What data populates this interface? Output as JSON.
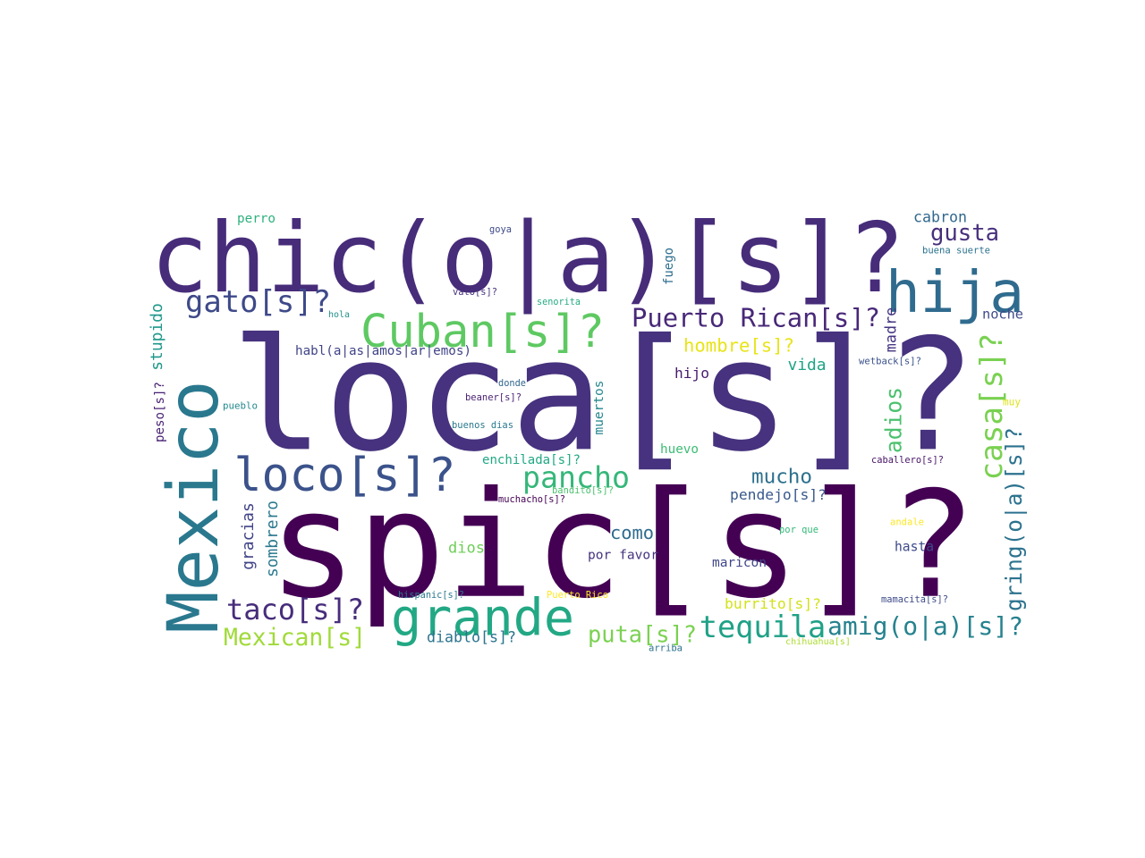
{
  "words": [
    {
      "text": "spic[s]?",
      "color": "#440154"
    },
    {
      "text": "loca[s]?",
      "color": "#46327e"
    },
    {
      "text": "chic(o|a)[s]?",
      "color": "#472c7a"
    },
    {
      "text": "Mexico",
      "color": "#2a788e"
    },
    {
      "text": "hija",
      "color": "#2f6b8e"
    },
    {
      "text": "grande",
      "color": "#22a884"
    },
    {
      "text": "Cuban[s]?",
      "color": "#5ec962"
    },
    {
      "text": "loco[s]?",
      "color": "#3b528b"
    },
    {
      "text": "gato[s]?",
      "color": "#3e4989"
    },
    {
      "text": "casa[s]?",
      "color": "#7ad151"
    },
    {
      "text": "gring(o|a)[s]?",
      "color": "#2c728e"
    },
    {
      "text": "Puerto Rican[s]?",
      "color": "#482878"
    },
    {
      "text": "tequila",
      "color": "#1fa187"
    },
    {
      "text": "amig(o|a)[s]?",
      "color": "#26828e"
    },
    {
      "text": "taco[s]?",
      "color": "#472d7b"
    },
    {
      "text": "Mexican[s]",
      "color": "#a0da39"
    },
    {
      "text": "pancho",
      "color": "#35b779"
    },
    {
      "text": "gusta",
      "color": "#472f7d"
    },
    {
      "text": "adios",
      "color": "#4ac16d"
    },
    {
      "text": "puta[s]?",
      "color": "#7ad151"
    },
    {
      "text": "mucho",
      "color": "#2d708e"
    },
    {
      "text": "como",
      "color": "#2f6c8e"
    },
    {
      "text": "hombre[s]?",
      "color": "#e8e419"
    },
    {
      "text": "cabron",
      "color": "#31688e"
    },
    {
      "text": "noche",
      "color": "#3e4a89"
    },
    {
      "text": "madre",
      "color": "#453581"
    },
    {
      "text": "stupido",
      "color": "#1f988b"
    },
    {
      "text": "gracias",
      "color": "#414487"
    },
    {
      "text": "sombrero",
      "color": "#2a788e"
    },
    {
      "text": "pendejo[s]?",
      "color": "#38598c"
    },
    {
      "text": "vida",
      "color": "#20a486"
    },
    {
      "text": "hijo",
      "color": "#481c6e"
    },
    {
      "text": "dios",
      "color": "#6ece58"
    },
    {
      "text": "hasta",
      "color": "#3e4989"
    },
    {
      "text": "maricon",
      "color": "#404688"
    },
    {
      "text": "por favor",
      "color": "#46337f"
    },
    {
      "text": "burrito[s]?",
      "color": "#d2e21b"
    },
    {
      "text": "diablo[s]?",
      "color": "#2c738e"
    },
    {
      "text": "habl(a|as|amos|ar|emos)",
      "color": "#414487"
    },
    {
      "text": "enchilada[s]?",
      "color": "#22a884"
    },
    {
      "text": "huevo",
      "color": "#3dbc74"
    },
    {
      "text": "muertos",
      "color": "#24868e"
    },
    {
      "text": "fuego",
      "color": "#2e6f8e"
    },
    {
      "text": "peso[s]?",
      "color": "#482173"
    },
    {
      "text": "perro",
      "color": "#2db27d"
    },
    {
      "text": "goya",
      "color": "#3e4a89"
    },
    {
      "text": "buena suerte",
      "color": "#2c728e"
    },
    {
      "text": "vato[s]?",
      "color": "#46327e"
    },
    {
      "text": "senorita",
      "color": "#25ab82"
    },
    {
      "text": "hola",
      "color": "#21918c"
    },
    {
      "text": "donde",
      "color": "#31688e"
    },
    {
      "text": "beaner[s]?",
      "color": "#481f70"
    },
    {
      "text": "buenos dias",
      "color": "#2a788e"
    },
    {
      "text": "pueblo",
      "color": "#23898e"
    },
    {
      "text": "wetback[s]?",
      "color": "#3b528b"
    },
    {
      "text": "muy",
      "color": "#dde318"
    },
    {
      "text": "caballero[s]?",
      "color": "#481467"
    },
    {
      "text": "bandito[s]?",
      "color": "#4ac16d"
    },
    {
      "text": "muchacho[s]?",
      "color": "#440154"
    },
    {
      "text": "andale",
      "color": "#fde725"
    },
    {
      "text": "por que",
      "color": "#35b779"
    },
    {
      "text": "hispanic[s]?",
      "color": "#2a788e"
    },
    {
      "text": "Puerto Rico",
      "color": "#fde725"
    },
    {
      "text": "mamacita[s]?",
      "color": "#3e4a89"
    },
    {
      "text": "arriba",
      "color": "#2c728e"
    },
    {
      "text": "chihuahua[s]",
      "color": "#addc30"
    }
  ]
}
